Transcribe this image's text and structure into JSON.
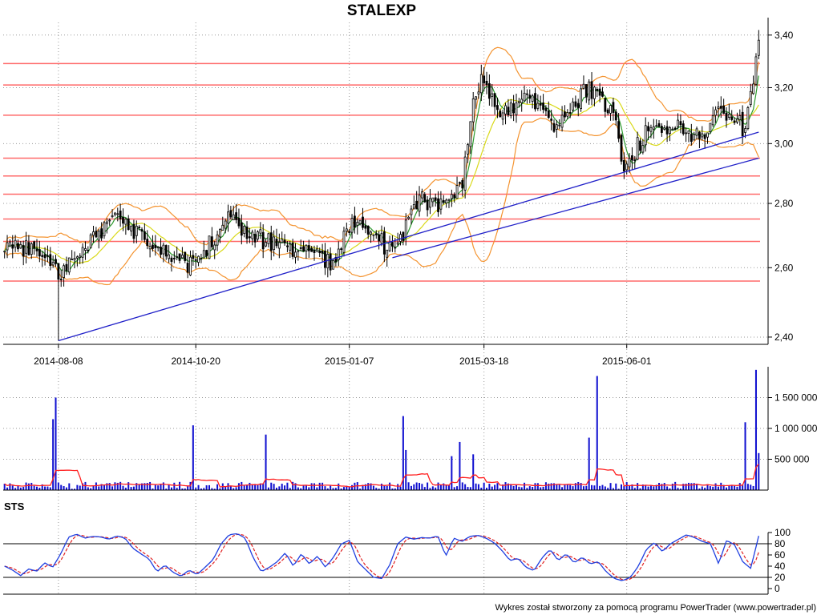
{
  "title": "STALEXP",
  "footer": "Wykres został stworzony za pomocą programu PowerTrader (www.powertrader.pl)",
  "colors": {
    "background": "#ffffff",
    "candle": "#000000",
    "support_resistance": "#ff6a6a",
    "trendline": "#1f1fc8",
    "bollinger": "#f4932f",
    "ma_short": "#2d9a2d",
    "ma_long": "#d9d91a",
    "volume_bars": "#1010d0",
    "volume_avg": "#ff2020",
    "sts_k": "#1f3fe0",
    "sts_d": "#e02020"
  },
  "chart_data": [
    {
      "id": "price",
      "type": "candlestick",
      "title": "STALEXP",
      "x_ticks": [
        "2014-08-08",
        "2014-10-20",
        "2015-01-07",
        "2015-03-18",
        "2015-06-01"
      ],
      "y_ticks": [
        "2,40",
        "2,60",
        "2,80",
        "3,00",
        "3,20",
        "3,40"
      ],
      "y_scale": "log",
      "y_range": [
        2.38,
        3.45
      ],
      "grid": true,
      "horizontal_levels": [
        2.56,
        2.68,
        2.75,
        2.83,
        2.89,
        2.95,
        3.1,
        3.21,
        3.29
      ],
      "key_points": [
        {
          "date": "2014-07-11",
          "close": 2.65
        },
        {
          "date": "2014-07-25",
          "close": 2.66
        },
        {
          "date": "2014-08-08",
          "close": 2.58,
          "low": 2.39
        },
        {
          "date": "2014-08-20",
          "close": 2.64
        },
        {
          "date": "2014-09-05",
          "close": 2.76
        },
        {
          "date": "2014-09-15",
          "close": 2.73
        },
        {
          "date": "2014-10-01",
          "close": 2.65
        },
        {
          "date": "2014-10-17",
          "close": 2.6
        },
        {
          "date": "2014-11-05",
          "close": 2.75
        },
        {
          "date": "2014-11-20",
          "close": 2.69
        },
        {
          "date": "2014-12-10",
          "close": 2.66
        },
        {
          "date": "2014-12-29",
          "close": 2.61
        },
        {
          "date": "2015-01-12",
          "close": 2.77
        },
        {
          "date": "2015-01-29",
          "close": 2.64
        },
        {
          "date": "2015-02-12",
          "close": 2.81
        },
        {
          "date": "2015-02-26",
          "close": 2.8
        },
        {
          "date": "2015-03-06",
          "close": 2.87
        },
        {
          "date": "2015-03-13",
          "close": 3.2
        },
        {
          "date": "2015-03-18",
          "close": 3.24
        },
        {
          "date": "2015-03-26",
          "close": 3.09
        },
        {
          "date": "2015-04-08",
          "close": 3.18
        },
        {
          "date": "2015-04-22",
          "close": 3.06
        },
        {
          "date": "2015-05-12",
          "close": 3.2
        },
        {
          "date": "2015-05-25",
          "close": 3.1
        },
        {
          "date": "2015-05-29",
          "close": 2.92
        },
        {
          "date": "2015-06-10",
          "close": 3.03
        },
        {
          "date": "2015-06-24",
          "close": 3.06
        },
        {
          "date": "2015-07-08",
          "close": 3.02
        },
        {
          "date": "2015-07-20",
          "close": 3.12
        },
        {
          "date": "2015-07-31",
          "close": 3.05
        },
        {
          "date": "2015-08-07",
          "close": 3.38,
          "high": 3.42
        }
      ],
      "trendlines": [
        {
          "from": {
            "date": "2014-08-08",
            "value": 2.39
          },
          "to": {
            "date": "2015-08-07",
            "value": 3.04
          }
        },
        {
          "from": {
            "date": "2015-01-29",
            "value": 2.63
          },
          "to": {
            "date": "2015-08-07",
            "value": 2.95
          }
        }
      ]
    },
    {
      "id": "volume",
      "type": "bar",
      "y_ticks": [
        "500 000",
        "1 000 000",
        "1 500 000"
      ],
      "y_range": [
        0,
        2000000
      ],
      "spikes": [
        {
          "date": "2014-08-06",
          "value": 1150000
        },
        {
          "date": "2014-08-07",
          "value": 1500000
        },
        {
          "date": "2014-10-17",
          "value": 1050000
        },
        {
          "date": "2014-11-25",
          "value": 900000
        },
        {
          "date": "2015-02-04",
          "value": 1200000
        },
        {
          "date": "2015-02-05",
          "value": 650000
        },
        {
          "date": "2015-03-02",
          "value": 550000
        },
        {
          "date": "2015-03-05",
          "value": 780000
        },
        {
          "date": "2015-03-12",
          "value": 580000
        },
        {
          "date": "2015-05-12",
          "value": 850000
        },
        {
          "date": "2015-05-15",
          "value": 1850000
        },
        {
          "date": "2015-07-31",
          "value": 1100000
        },
        {
          "date": "2015-08-06",
          "value": 1950000
        },
        {
          "date": "2015-08-07",
          "value": 600000
        }
      ],
      "typical_value": 70000
    },
    {
      "id": "sts",
      "type": "line",
      "title": "STS",
      "y_ticks": [
        "0",
        "20",
        "40",
        "60",
        "80",
        "100"
      ],
      "y_range": [
        0,
        100
      ],
      "reference_lines": [
        20,
        80
      ],
      "k_profile": [
        [
          0,
          40
        ],
        [
          10,
          33
        ],
        [
          20,
          23
        ],
        [
          30,
          35
        ],
        [
          40,
          31
        ],
        [
          50,
          46
        ],
        [
          60,
          38
        ],
        [
          70,
          62
        ],
        [
          80,
          92
        ],
        [
          90,
          97
        ],
        [
          100,
          90
        ],
        [
          110,
          93
        ],
        [
          120,
          92
        ],
        [
          130,
          88
        ],
        [
          140,
          94
        ],
        [
          150,
          90
        ],
        [
          160,
          72
        ],
        [
          170,
          62
        ],
        [
          180,
          53
        ],
        [
          190,
          30
        ],
        [
          200,
          42
        ],
        [
          210,
          29
        ],
        [
          220,
          22
        ],
        [
          230,
          33
        ],
        [
          240,
          25
        ],
        [
          250,
          38
        ],
        [
          260,
          52
        ],
        [
          270,
          80
        ],
        [
          280,
          96
        ],
        [
          290,
          98
        ],
        [
          300,
          90
        ],
        [
          310,
          55
        ],
        [
          320,
          30
        ],
        [
          330,
          38
        ],
        [
          340,
          48
        ],
        [
          350,
          64
        ],
        [
          360,
          40
        ],
        [
          370,
          62
        ],
        [
          380,
          44
        ],
        [
          390,
          58
        ],
        [
          400,
          38
        ],
        [
          410,
          56
        ],
        [
          420,
          80
        ],
        [
          430,
          86
        ],
        [
          440,
          48
        ],
        [
          450,
          34
        ],
        [
          460,
          20
        ],
        [
          470,
          18
        ],
        [
          480,
          42
        ],
        [
          490,
          80
        ],
        [
          500,
          92
        ],
        [
          510,
          88
        ],
        [
          520,
          91
        ],
        [
          530,
          90
        ],
        [
          540,
          94
        ],
        [
          550,
          58
        ],
        [
          560,
          90
        ],
        [
          570,
          84
        ],
        [
          580,
          93
        ],
        [
          590,
          95
        ],
        [
          600,
          90
        ],
        [
          610,
          82
        ],
        [
          620,
          68
        ],
        [
          630,
          50
        ],
        [
          640,
          54
        ],
        [
          650,
          38
        ],
        [
          660,
          32
        ],
        [
          670,
          55
        ],
        [
          680,
          70
        ],
        [
          690,
          50
        ],
        [
          700,
          62
        ],
        [
          710,
          46
        ],
        [
          720,
          56
        ],
        [
          730,
          44
        ],
        [
          740,
          48
        ],
        [
          750,
          30
        ],
        [
          760,
          18
        ],
        [
          770,
          14
        ],
        [
          780,
          20
        ],
        [
          790,
          40
        ],
        [
          800,
          70
        ],
        [
          810,
          82
        ],
        [
          820,
          66
        ],
        [
          830,
          80
        ],
        [
          840,
          88
        ],
        [
          850,
          96
        ],
        [
          860,
          91
        ],
        [
          870,
          84
        ],
        [
          880,
          80
        ],
        [
          890,
          44
        ],
        [
          900,
          86
        ],
        [
          910,
          78
        ],
        [
          920,
          48
        ],
        [
          930,
          36
        ],
        [
          940,
          94
        ]
      ]
    }
  ]
}
